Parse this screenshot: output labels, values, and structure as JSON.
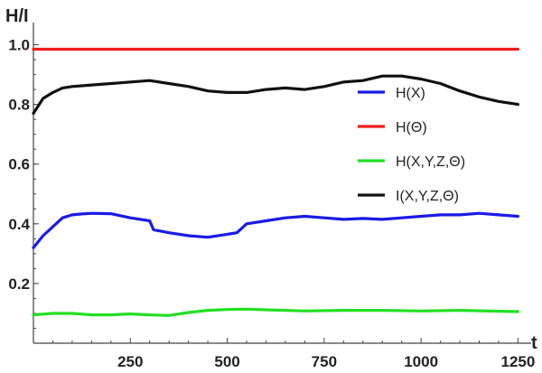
{
  "chart_data": {
    "type": "line",
    "xlabel": "t",
    "ylabel": "H/I",
    "xlim": [
      0,
      1270
    ],
    "ylim": [
      0,
      1.05
    ],
    "x_ticks": [
      250,
      500,
      750,
      1000,
      1250
    ],
    "x_tick_labels": [
      "250",
      "500",
      "750",
      "1000",
      "1250"
    ],
    "y_ticks": [
      0.2,
      0.4,
      0.6,
      0.8,
      1.0
    ],
    "y_tick_labels": [
      "0.2",
      "0.4",
      "0.6",
      "0.8",
      "1.0"
    ],
    "legend_position": "right",
    "series": [
      {
        "name": "H(X)",
        "color": "#1a1ae6",
        "x": [
          0,
          25,
          50,
          75,
          100,
          125,
          150,
          200,
          250,
          300,
          310,
          350,
          400,
          450,
          500,
          525,
          550,
          600,
          650,
          700,
          750,
          800,
          850,
          900,
          950,
          1000,
          1050,
          1100,
          1150,
          1200,
          1250
        ],
        "y": [
          0.32,
          0.36,
          0.39,
          0.42,
          0.43,
          0.433,
          0.435,
          0.434,
          0.42,
          0.41,
          0.38,
          0.37,
          0.36,
          0.355,
          0.365,
          0.37,
          0.4,
          0.41,
          0.42,
          0.425,
          0.42,
          0.415,
          0.418,
          0.415,
          0.42,
          0.425,
          0.43,
          0.43,
          0.435,
          0.43,
          0.425
        ]
      },
      {
        "name": "H(Θ)",
        "color": "#ee1c1c",
        "x": [
          0,
          1250
        ],
        "y": [
          0.985,
          0.985
        ]
      },
      {
        "name": "H(X,Y,Z,Θ)",
        "color": "#22e022",
        "x": [
          0,
          50,
          100,
          150,
          200,
          250,
          300,
          350,
          400,
          450,
          500,
          550,
          600,
          700,
          800,
          900,
          1000,
          1100,
          1200,
          1250
        ],
        "y": [
          0.095,
          0.1,
          0.1,
          0.095,
          0.095,
          0.098,
          0.095,
          0.093,
          0.103,
          0.11,
          0.113,
          0.114,
          0.112,
          0.108,
          0.11,
          0.11,
          0.108,
          0.11,
          0.107,
          0.106
        ]
      },
      {
        "name": "I(X,Y,Z,Θ)",
        "color": "#111111",
        "x": [
          0,
          25,
          50,
          75,
          100,
          150,
          200,
          250,
          300,
          350,
          400,
          450,
          500,
          550,
          600,
          650,
          700,
          750,
          800,
          850,
          900,
          950,
          1000,
          1050,
          1100,
          1150,
          1200,
          1250
        ],
        "y": [
          0.77,
          0.82,
          0.84,
          0.855,
          0.86,
          0.865,
          0.87,
          0.875,
          0.88,
          0.87,
          0.86,
          0.845,
          0.84,
          0.84,
          0.85,
          0.855,
          0.85,
          0.86,
          0.875,
          0.88,
          0.895,
          0.895,
          0.885,
          0.87,
          0.845,
          0.825,
          0.81,
          0.8
        ]
      }
    ]
  }
}
